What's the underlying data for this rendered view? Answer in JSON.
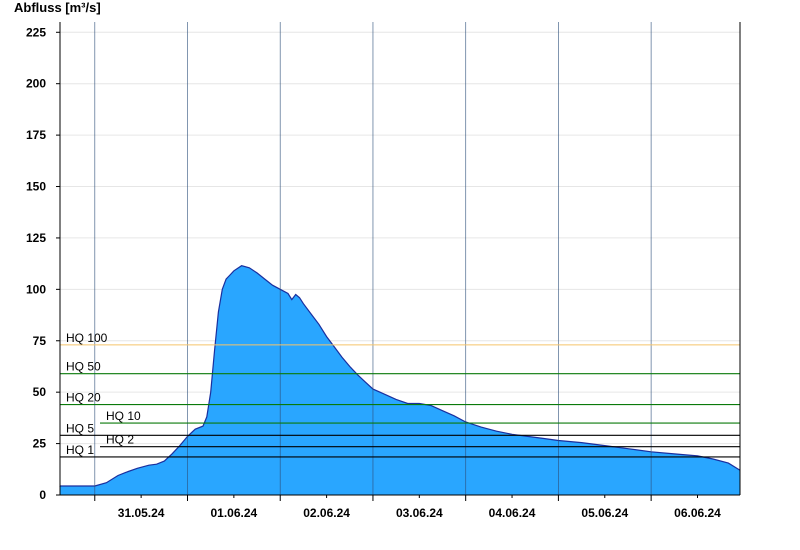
{
  "chart_data": {
    "type": "area",
    "title": "",
    "ylabel": "Abfluss [m³/s]",
    "xlabel": "",
    "ylim": [
      0,
      230
    ],
    "yticks": [
      0,
      25,
      50,
      75,
      100,
      125,
      150,
      175,
      200,
      225
    ],
    "xlim": [
      "2024-05-30T15:00",
      "2024-06-06T23:00"
    ],
    "day_labels": [
      {
        "date": "2024-05-31",
        "label": "31.05.24"
      },
      {
        "date": "2024-06-01",
        "label": "01.06.24"
      },
      {
        "date": "2024-06-02",
        "label": "02.06.24"
      },
      {
        "date": "2024-06-03",
        "label": "03.06.24"
      },
      {
        "date": "2024-06-04",
        "label": "04.06.24"
      },
      {
        "date": "2024-06-05",
        "label": "05.06.24"
      },
      {
        "date": "2024-06-06",
        "label": "06.06.24"
      }
    ],
    "grid": "horizontal",
    "area_color": "#29a6ff",
    "series": [
      {
        "points": [
          [
            "2024-05-30T15:00",
            4.4
          ],
          [
            "2024-05-30T20:00",
            4.4
          ],
          [
            "2024-05-31T00:00",
            4.4
          ],
          [
            "2024-05-31T03:00",
            6.0
          ],
          [
            "2024-05-31T06:00",
            9.5
          ],
          [
            "2024-05-31T08:00",
            11.0
          ],
          [
            "2024-05-31T11:00",
            13.0
          ],
          [
            "2024-05-31T14:00",
            14.5
          ],
          [
            "2024-05-31T16:00",
            15.0
          ],
          [
            "2024-05-31T18:00",
            16.5
          ],
          [
            "2024-05-31T20:00",
            20.0
          ],
          [
            "2024-05-31T22:00",
            24.0
          ],
          [
            "2024-06-01T00:00",
            28.5
          ],
          [
            "2024-06-01T02:00",
            32.0
          ],
          [
            "2024-06-01T04:00",
            33.5
          ],
          [
            "2024-06-01T05:00",
            38.0
          ],
          [
            "2024-06-01T06:00",
            50.0
          ],
          [
            "2024-06-01T07:00",
            70.0
          ],
          [
            "2024-06-01T08:00",
            89.0
          ],
          [
            "2024-06-01T09:00",
            100.0
          ],
          [
            "2024-06-01T10:00",
            105.0
          ],
          [
            "2024-06-01T11:00",
            107.0
          ],
          [
            "2024-06-01T12:00",
            109.0
          ],
          [
            "2024-06-01T14:00",
            111.5
          ],
          [
            "2024-06-01T16:00",
            110.5
          ],
          [
            "2024-06-01T18:00",
            108.0
          ],
          [
            "2024-06-01T20:00",
            105.0
          ],
          [
            "2024-06-01T22:00",
            102.0
          ],
          [
            "2024-06-02T00:00",
            100.0
          ],
          [
            "2024-06-02T02:00",
            98.0
          ],
          [
            "2024-06-02T03:00",
            95.0
          ],
          [
            "2024-06-02T04:00",
            97.5
          ],
          [
            "2024-06-02T05:00",
            96.0
          ],
          [
            "2024-06-02T06:00",
            93.0
          ],
          [
            "2024-06-02T08:00",
            88.0
          ],
          [
            "2024-06-02T10:00",
            83.0
          ],
          [
            "2024-06-02T12:00",
            77.0
          ],
          [
            "2024-06-02T14:00",
            72.0
          ],
          [
            "2024-06-02T16:00",
            67.0
          ],
          [
            "2024-06-02T18:00",
            62.5
          ],
          [
            "2024-06-02T20:00",
            58.5
          ],
          [
            "2024-06-02T22:00",
            55.0
          ],
          [
            "2024-06-03T00:00",
            51.5
          ],
          [
            "2024-06-03T03:00",
            49.0
          ],
          [
            "2024-06-03T06:00",
            46.5
          ],
          [
            "2024-06-03T09:00",
            44.5
          ],
          [
            "2024-06-03T12:00",
            44.5
          ],
          [
            "2024-06-03T15:00",
            43.5
          ],
          [
            "2024-06-03T18:00",
            41.0
          ],
          [
            "2024-06-03T21:00",
            38.5
          ],
          [
            "2024-06-04T00:00",
            35.5
          ],
          [
            "2024-06-04T04:00",
            33.0
          ],
          [
            "2024-06-04T08:00",
            31.0
          ],
          [
            "2024-06-04T12:00",
            29.5
          ],
          [
            "2024-06-04T16:00",
            28.5
          ],
          [
            "2024-06-04T20:00",
            27.5
          ],
          [
            "2024-06-05T00:00",
            26.5
          ],
          [
            "2024-06-05T06:00",
            25.5
          ],
          [
            "2024-06-05T12:00",
            24.0
          ],
          [
            "2024-06-05T18:00",
            22.5
          ],
          [
            "2024-06-06T00:00",
            21.0
          ],
          [
            "2024-06-06T06:00",
            20.0
          ],
          [
            "2024-06-06T12:00",
            19.0
          ],
          [
            "2024-06-06T16:00",
            17.5
          ],
          [
            "2024-06-06T20:00",
            15.5
          ],
          [
            "2024-06-06T23:00",
            12.0
          ]
        ]
      }
    ],
    "thresholds": [
      {
        "label": "HQ 100",
        "value": 73,
        "color": "#f5c46a"
      },
      {
        "label": "HQ 50",
        "value": 59,
        "color": "#0a7a0a"
      },
      {
        "label": "HQ 20",
        "value": 44,
        "color": "#0a7a0a"
      },
      {
        "label": "HQ 10",
        "value": 35,
        "color": "#0a7a0a"
      },
      {
        "label": "HQ 5",
        "value": 29,
        "color": "#000000"
      },
      {
        "label": "HQ 2",
        "value": 23.5,
        "color": "#000000"
      },
      {
        "label": "HQ 1",
        "value": 18.5,
        "color": "#000000"
      }
    ]
  }
}
